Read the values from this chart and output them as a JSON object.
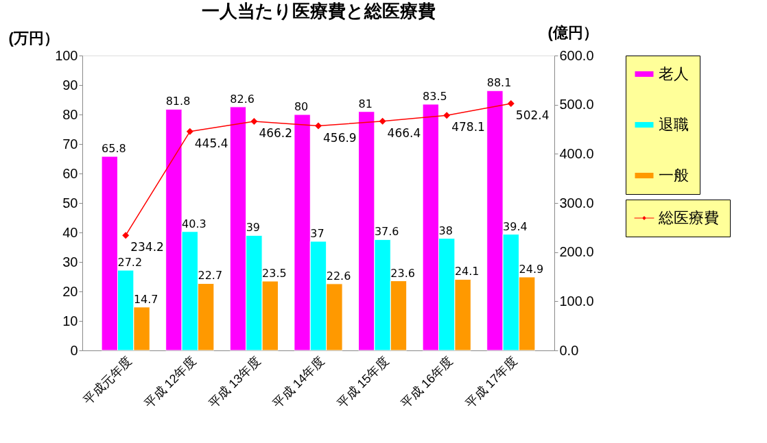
{
  "chart_data": {
    "type": "bar",
    "title": "一人当たり医療費と総医療費",
    "ylabel": "(万円）",
    "y2label": "(億円）",
    "categories": [
      "平成元年度",
      "平成 12年度",
      "平成 13年度",
      "平成 14年度",
      "平成 15年度",
      "平成 16年度",
      "平成 17年度"
    ],
    "series": [
      {
        "name": "老人",
        "color": "#ff00ff",
        "values": [
          65.8,
          81.8,
          82.6,
          80,
          81,
          83.5,
          88.1
        ]
      },
      {
        "name": "退職",
        "color": "#00ffff",
        "values": [
          27.2,
          40.3,
          39,
          37,
          37.6,
          38,
          39.4
        ]
      },
      {
        "name": "一般",
        "color": "#ff9900",
        "values": [
          14.7,
          22.7,
          23.5,
          22.6,
          23.6,
          24.1,
          24.9
        ]
      },
      {
        "name": "総医療費",
        "type": "line",
        "axis": "y2",
        "color": "#ff0000",
        "values": [
          234.2,
          445.4,
          466.2,
          456.9,
          466.4,
          478.1,
          502.4
        ]
      }
    ],
    "ylim": [
      0,
      100
    ],
    "yticks": [
      0,
      10,
      20,
      30,
      40,
      50,
      60,
      70,
      80,
      90,
      100
    ],
    "y2lim": [
      0,
      600
    ],
    "y2ticks": [
      {
        "value": 0,
        "label": "0.0"
      },
      {
        "value": 100,
        "label": "100.0"
      },
      {
        "value": 200,
        "label": "200.0"
      },
      {
        "value": 300,
        "label": "300.0"
      },
      {
        "value": 400,
        "label": "400.0"
      },
      {
        "value": 500,
        "label": "500.0"
      },
      {
        "value": 600,
        "label": "600.0"
      }
    ],
    "data_labels": true,
    "legend": "right",
    "marker": "diamond",
    "grid": false
  }
}
